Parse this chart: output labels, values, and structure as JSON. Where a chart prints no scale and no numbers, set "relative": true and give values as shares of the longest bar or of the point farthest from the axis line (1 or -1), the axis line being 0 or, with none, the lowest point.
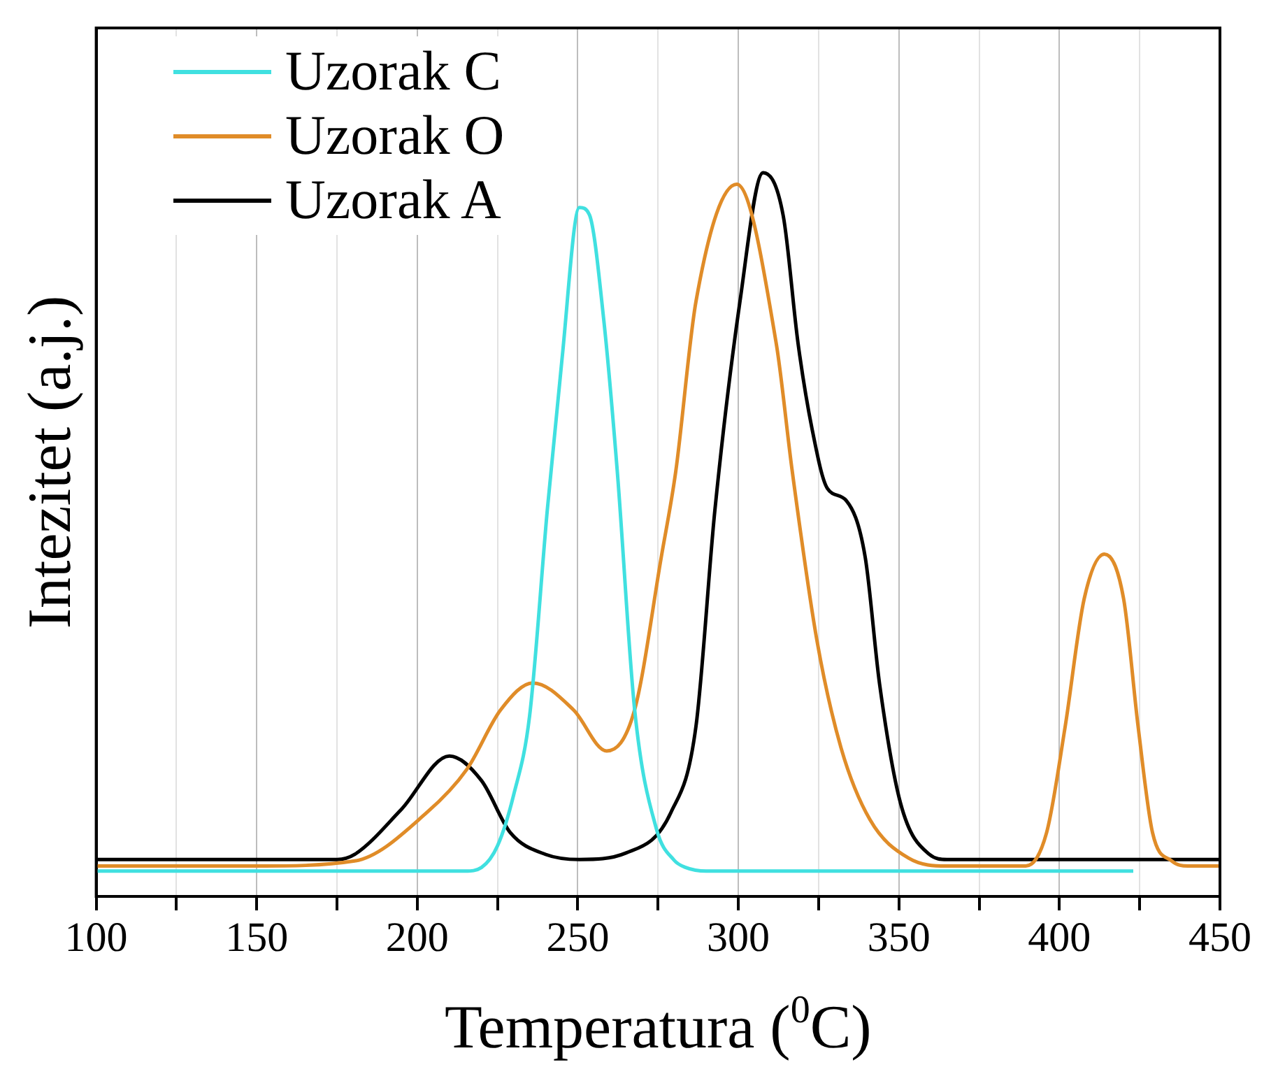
{
  "chart_data": {
    "type": "line",
    "xlabel": "Temperatura ($^{0}$C)",
    "ylabel": "Intezitet (a.j.)",
    "relative": true,
    "xlim": [
      100,
      450
    ],
    "xticks": [
      100,
      {
        "value": 125,
        "label": null
      },
      150,
      {
        "value": 175,
        "label": null
      },
      200,
      {
        "value": 225,
        "label": null
      },
      250,
      {
        "value": 275,
        "label": null
      },
      300,
      {
        "value": 325,
        "label": null
      },
      350,
      {
        "value": 375,
        "label": null
      },
      400,
      {
        "value": 425,
        "label": null
      },
      450
    ],
    "grid": "x",
    "legend": "top left",
    "marker": "none",
    "line_style": "solid",
    "series": [
      {
        "name": "Uzorak C",
        "color": "#40e0e0",
        "x": [
          100,
          215,
          220,
          225,
          230,
          235,
          240.5,
          245,
          250.5,
          253.6,
          258,
          262.3,
          267.7,
          274.5,
          280,
          283.6,
          290,
          423
        ],
        "values": [
          0.035,
          0.035,
          0.04,
          0.07,
          0.14,
          0.25,
          0.534,
          0.739,
          0.952,
          0.942,
          0.8,
          0.587,
          0.258,
          0.093,
          0.05,
          0.04,
          0.035,
          0.035
        ]
      },
      {
        "name": "Uzorak O",
        "color": "#e08c28",
        "x": [
          100,
          150,
          180.5,
          203,
          215.5,
          226,
          236,
          248.6,
          259,
          267.7,
          276,
          280.5,
          286.8,
          299.5,
          311.8,
          316.8,
          324.5,
          332,
          341,
          353,
          365,
          389.5,
          396,
          401.8,
          407.7,
          414,
          420,
          424.5,
          429,
          435,
          440,
          450
        ],
        "values": [
          0.042,
          0.042,
          0.049,
          0.116,
          0.176,
          0.258,
          0.295,
          0.258,
          0.201,
          0.258,
          0.469,
          0.587,
          0.822,
          0.984,
          0.764,
          0.587,
          0.353,
          0.205,
          0.106,
          0.053,
          0.042,
          0.042,
          0.088,
          0.235,
          0.411,
          0.473,
          0.411,
          0.235,
          0.088,
          0.049,
          0.042,
          0.042
        ]
      },
      {
        "name": "Uzorak A",
        "color": "#000000",
        "x": [
          100,
          175,
          180.5,
          195,
          210,
          220,
          229,
          240,
          250.5,
          265,
          279,
          286.8,
          292.7,
          300.5,
          307.7,
          314,
          318.6,
          323,
          327.7,
          333.6,
          339.5,
          344,
          350.5,
          359.5,
          365,
          450
        ],
        "values": [
          0.051,
          0.051,
          0.058,
          0.12,
          0.194,
          0.16,
          0.088,
          0.058,
          0.051,
          0.06,
          0.116,
          0.235,
          0.534,
          0.822,
          1.0,
          0.94,
          0.764,
          0.645,
          0.564,
          0.547,
          0.469,
          0.293,
          0.129,
          0.058,
          0.051,
          0.051
        ]
      }
    ]
  }
}
